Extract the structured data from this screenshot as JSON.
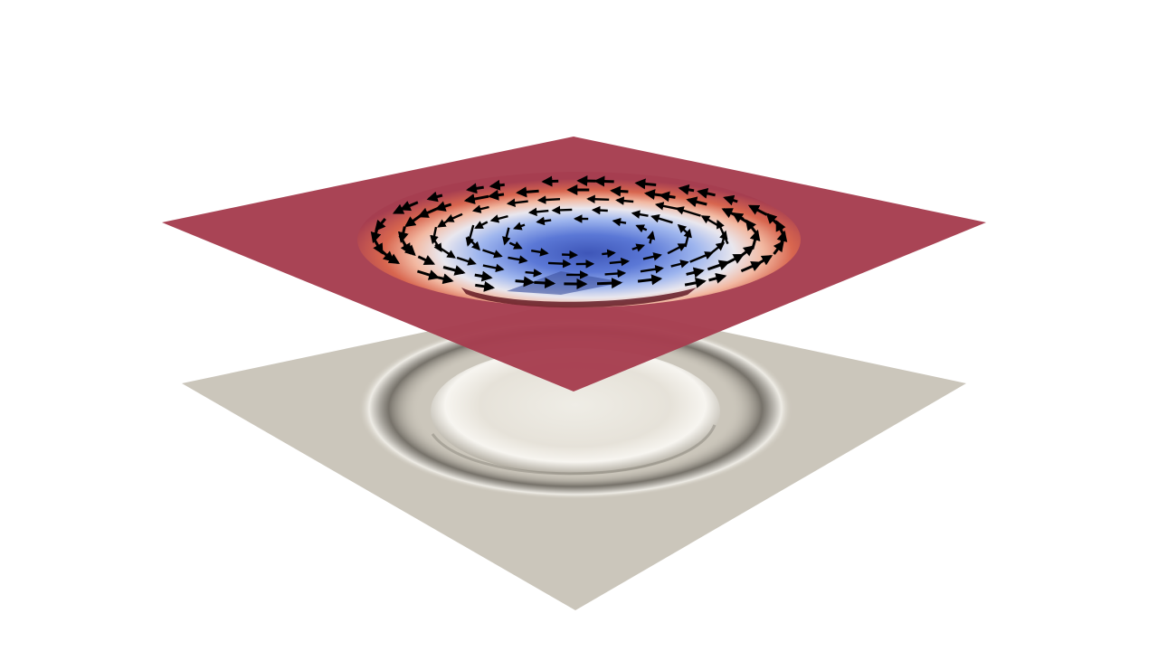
{
  "scene": {
    "background_color": "#ffffff",
    "top_slice": {
      "surface_color": "#a63e50",
      "colormap": [
        "#3b4cc0",
        "#7b9ff9",
        "#c0d4f5",
        "#f2f2f2",
        "#f7b89c",
        "#dd604d",
        "#b40426"
      ],
      "glyph_color": "#000000",
      "glyph_type": "arrow"
    },
    "bottom_surface": {
      "surface_color": "#cbc6bb",
      "bump_highlight_color": "#f4f2ee",
      "bump_shadow_color": "#6e6a62"
    }
  }
}
